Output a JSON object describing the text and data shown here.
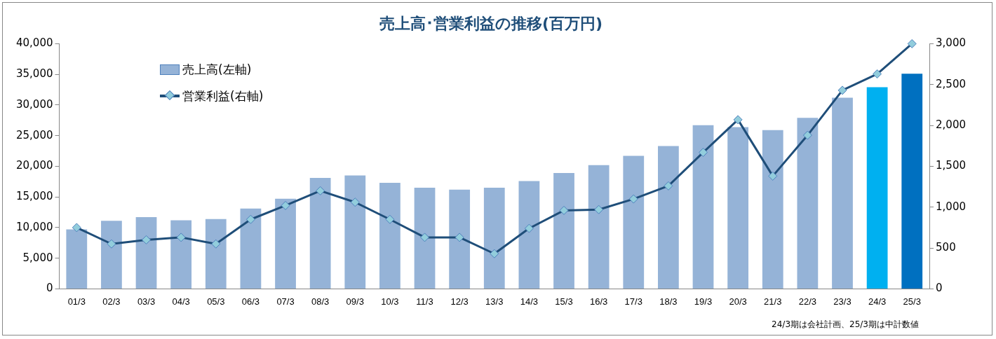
{
  "chart_data": {
    "type": "bar",
    "title": "売上高･営業利益の推移(百万円)",
    "categories": [
      "01/3",
      "02/3",
      "03/3",
      "04/3",
      "05/3",
      "06/3",
      "07/3",
      "08/3",
      "09/3",
      "10/3",
      "11/3",
      "12/3",
      "13/3",
      "14/3",
      "15/3",
      "16/3",
      "17/3",
      "18/3",
      "19/3",
      "20/3",
      "21/3",
      "22/3",
      "23/3",
      "24/3",
      "25/3"
    ],
    "series": [
      {
        "name": "売上高(左軸)",
        "color": "#95b3d7",
        "colors": [
          "#95b3d7",
          "#95b3d7",
          "#95b3d7",
          "#95b3d7",
          "#95b3d7",
          "#95b3d7",
          "#95b3d7",
          "#95b3d7",
          "#95b3d7",
          "#95b3d7",
          "#95b3d7",
          "#95b3d7",
          "#95b3d7",
          "#95b3d7",
          "#95b3d7",
          "#95b3d7",
          "#95b3d7",
          "#95b3d7",
          "#95b3d7",
          "#95b3d7",
          "#95b3d7",
          "#95b3d7",
          "#95b3d7",
          "#00b0f0",
          "#0070c0"
        ],
        "values": [
          9700,
          11100,
          11700,
          11200,
          11400,
          13100,
          14700,
          18100,
          18500,
          17300,
          16500,
          16200,
          16500,
          17600,
          18900,
          20200,
          21700,
          23300,
          26700,
          26400,
          25900,
          27900,
          31200,
          32900,
          35100
        ]
      },
      {
        "name": "営業利益(右軸)",
        "type": "line",
        "axis": "y2",
        "color": "#1f4e79",
        "values": [
          750,
          550,
          600,
          630,
          550,
          850,
          1020,
          1200,
          1060,
          850,
          630,
          630,
          430,
          740,
          960,
          970,
          1100,
          1260,
          1670,
          2070,
          1380,
          1880,
          2430,
          2630,
          3000
        ]
      }
    ],
    "ylim": [
      0,
      40000
    ],
    "yticks": [
      0,
      {
        "value": 5000,
        "label": "5,000"
      },
      {
        "value": 10000,
        "label": "10,000"
      },
      {
        "value": 15000,
        "label": "15,000"
      },
      {
        "value": 20000,
        "label": "20,000"
      },
      {
        "value": 25000,
        "label": "25,000"
      },
      {
        "value": 30000,
        "label": "30,000"
      },
      {
        "value": 35000,
        "label": "35,000"
      },
      {
        "value": 40000,
        "label": "40,000"
      }
    ],
    "y2lim": [
      0,
      3000
    ],
    "y2ticks": [
      0,
      500,
      {
        "value": 1000,
        "label": "1,000"
      },
      {
        "value": 1500,
        "label": "1,500"
      },
      {
        "value": 2000,
        "label": "2,000"
      },
      {
        "value": 2500,
        "label": "2,500"
      },
      {
        "value": 3000,
        "label": "3,000"
      }
    ],
    "grid": false,
    "legend": "top left",
    "marker": "diamond",
    "annotations": [
      "24/3期は会社計画、25/3期は中計数値"
    ]
  }
}
